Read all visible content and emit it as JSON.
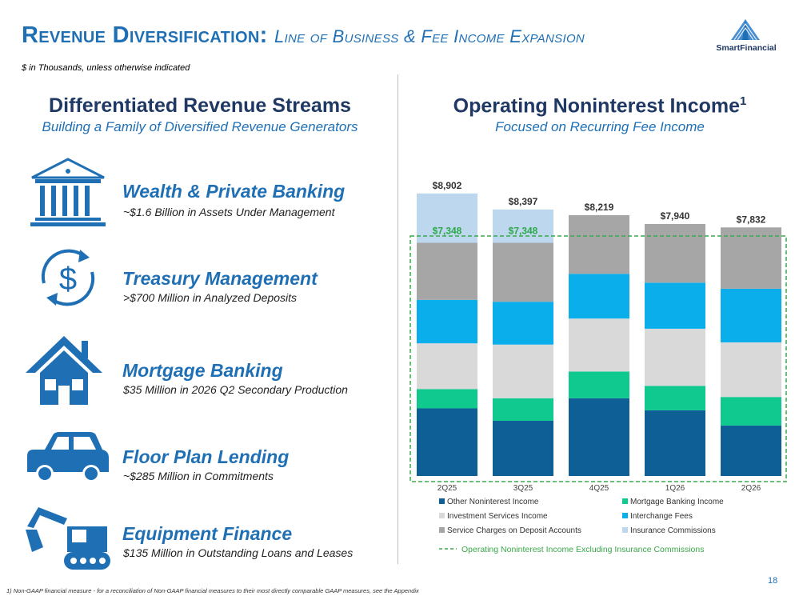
{
  "header": {
    "title_main": "Revenue Diversification:",
    "title_sub": "Line of Business & Fee Income Expansion",
    "units_note": "$ in Thousands, unless otherwise indicated",
    "logo_text": "SmartFinancial"
  },
  "left": {
    "heading": "Differentiated Revenue Streams",
    "subheading": "Building a Family of Diversified Revenue Generators",
    "streams": [
      {
        "name": "Wealth & Private Banking",
        "desc": "~$1.6 Billion in Assets Under Management",
        "icon": "bank-building-icon"
      },
      {
        "name": "Treasury Management",
        "desc": ">$700 Million in Analyzed Deposits",
        "icon": "dollar-cycle-icon"
      },
      {
        "name": "Mortgage Banking",
        "desc": "$35 Million in 2026 Q2 Secondary Production",
        "icon": "house-icon"
      },
      {
        "name": "Floor Plan Lending",
        "desc": "~$285 Million in Commitments",
        "icon": "car-icon"
      },
      {
        "name": "Equipment Finance",
        "desc": "$135 Million in Outstanding Loans and Leases",
        "icon": "excavator-icon"
      }
    ]
  },
  "right": {
    "heading": "Operating Noninterest Income",
    "heading_sup": "1",
    "subheading": "Focused on Recurring Fee Income"
  },
  "chart_data": {
    "type": "bar",
    "stacked": true,
    "categories": [
      "2Q25",
      "3Q25",
      "4Q25",
      "1Q26",
      "2Q26"
    ],
    "totals": [
      "$8,902",
      "$8,397",
      "$8,219",
      "$7,940",
      "$7,832"
    ],
    "totals_values": [
      8902,
      8397,
      8219,
      7940,
      7832
    ],
    "ex_insurance_labels": [
      "$7,348",
      "$7,348",
      "",
      "",
      ""
    ],
    "series": [
      {
        "name": "Other Noninterest Income",
        "color": "#0e5f96",
        "values": [
          2130,
          1740,
          2450,
          2070,
          1590
        ]
      },
      {
        "name": "Mortgage Banking Income",
        "color": "#10c98f",
        "values": [
          610,
          710,
          840,
          770,
          900
        ]
      },
      {
        "name": "Investment Services Income",
        "color": "#d9d9d9",
        "values": [
          1440,
          1690,
          1670,
          1800,
          1720
        ]
      },
      {
        "name": "Interchange Fees",
        "color": "#0aaeea",
        "values": [
          1370,
          1350,
          1410,
          1450,
          1690
        ]
      },
      {
        "name": "Service Charges on Deposit Accounts",
        "color": "#a6a6a6",
        "values": [
          1798,
          1858,
          1849,
          1850,
          1932
        ]
      },
      {
        "name": "Insurance Commissions",
        "color": "#bdd7ee",
        "values": [
          1554,
          1049,
          0,
          0,
          0
        ]
      }
    ],
    "legend_line_label": "Operating Noninterest Income Excluding Insurance Commissions",
    "legend_line_color": "#3aa84a",
    "ylim": [
      0,
      9200
    ],
    "legend": "bottom"
  },
  "footer": {
    "footnote": "1) Non-GAAP financial measure - for a reconciliation of Non-GAAP financial measures to their most directly comparable GAAP measures, see the Appendix",
    "page_number": "18"
  }
}
